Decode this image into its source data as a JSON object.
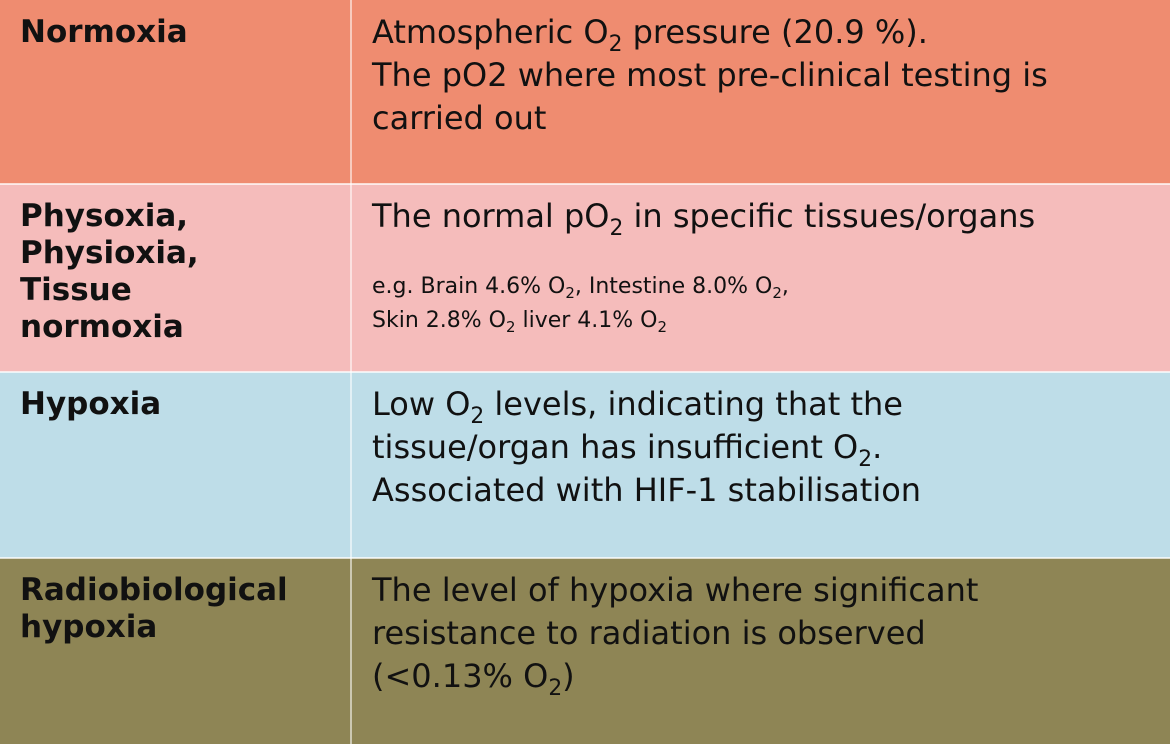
{
  "colors": {
    "normoxia_bg": "#ef8c70",
    "physoxia_bg": "#f5bcbb",
    "hypoxia_bg": "#bedde8",
    "radiobiological_bg": "#8e8555"
  },
  "rows": [
    {
      "term_lines": [
        "Normoxia"
      ],
      "definition": {
        "line1_a": "Atmospheric O",
        "line1_sub": "2",
        "line1_b": " pressure (20.9 %).",
        "line2": "The pO2 where most pre-clinical testing is",
        "line3": "carried out"
      }
    },
    {
      "term_lines": [
        "Physoxia,",
        "Physioxia,",
        "Tissue",
        "normoxia"
      ],
      "definition": {
        "line1_a": "The normal pO",
        "line1_sub": "2",
        "line1_b": " in specific tissues/organs",
        "example1_a": "e.g. Brain 4.6% O",
        "example1_sub1": "2",
        "example1_b": ", Intestine 8.0% O",
        "example1_sub2": "2",
        "example1_c": ",",
        "example2_a": "Skin 2.8% O",
        "example2_sub1": "2",
        "example2_b": " liver 4.1% O",
        "example2_sub2": "2"
      }
    },
    {
      "term_lines": [
        "Hypoxia"
      ],
      "definition": {
        "line1_a": "Low O",
        "line1_sub": "2",
        "line1_b": " levels, indicating that the",
        "line2_a": "tissue/organ has insufficient O",
        "line2_sub": "2",
        "line2_b": ".",
        "line3": "Associated with HIF-1 stabilisation"
      }
    },
    {
      "term_lines": [
        "Radiobiological",
        "hypoxia"
      ],
      "definition": {
        "line1": "The level of hypoxia where significant",
        "line2": "resistance to radiation is observed",
        "line3_a": "(<0.13% O",
        "line3_sub": "2",
        "line3_b": ")"
      }
    }
  ]
}
